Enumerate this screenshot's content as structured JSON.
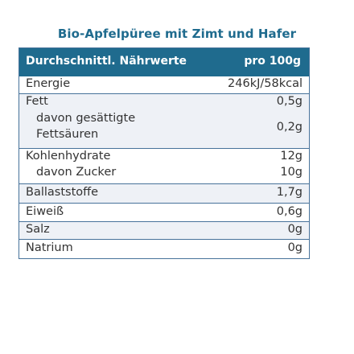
{
  "title": "Bio-Apfelpüree mit Zimt und Hafer",
  "table": {
    "header": {
      "label": "Durchschnittl. Nährwerte",
      "value": "pro 100g"
    },
    "rows": {
      "energie": {
        "label": "Energie",
        "value": "246kJ/58kcal"
      },
      "fett": {
        "label": "Fett",
        "value": "0,5g"
      },
      "gesaettigte": {
        "label_line1": "davon gesättigte",
        "label_line2": "Fettsäuren",
        "value": "0,2g"
      },
      "kohlenhydrate": {
        "label": "Kohlenhydrate",
        "value": "12g"
      },
      "zucker": {
        "label": "davon Zucker",
        "value": "10g"
      },
      "ballaststoffe": {
        "label": "Ballaststoffe",
        "value": "1,7g"
      },
      "eiweiss": {
        "label": "Eiweiß",
        "value": "0,6g"
      },
      "salz": {
        "label": "Salz",
        "value": "0g"
      },
      "natrium": {
        "label": "Natrium",
        "value": "0g"
      }
    }
  },
  "colors": {
    "header_bg": "#1f6b8e",
    "title": "#1f6b8e",
    "border": "#47729a",
    "shaded_row": "#eef1f6",
    "text": "#333333"
  }
}
